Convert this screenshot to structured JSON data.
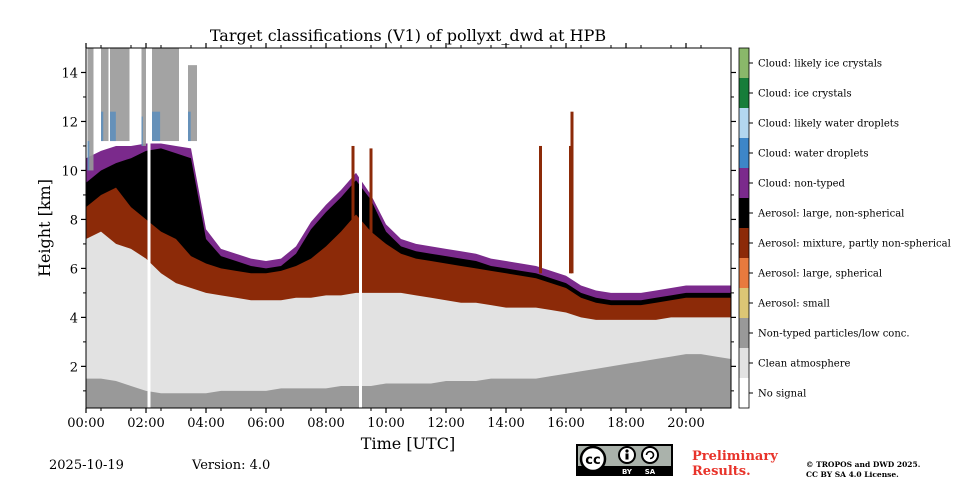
{
  "chart_data": {
    "type": "heatmap",
    "title": "Target classifications (V1) of pollyxt_dwd at HPB",
    "xlabel": "Time [UTC]",
    "ylabel": "Height [km]",
    "xlim": [
      0,
      21.5
    ],
    "ylim": [
      0.3,
      15.0
    ],
    "x_ticks": [
      {
        "value": 0,
        "label": "00:00"
      },
      {
        "value": 2,
        "label": "02:00"
      },
      {
        "value": 4,
        "label": "04:00"
      },
      {
        "value": 6,
        "label": "06:00"
      },
      {
        "value": 8,
        "label": "08:00"
      },
      {
        "value": 10,
        "label": "10:00"
      },
      {
        "value": 12,
        "label": "12:00"
      },
      {
        "value": 14,
        "label": "14:00"
      },
      {
        "value": 16,
        "label": "16:00"
      },
      {
        "value": 18,
        "label": "18:00"
      },
      {
        "value": 20,
        "label": "20:00"
      }
    ],
    "y_ticks": [
      {
        "value": 2,
        "label": "2"
      },
      {
        "value": 4,
        "label": "4"
      },
      {
        "value": 6,
        "label": "6"
      },
      {
        "value": 8,
        "label": "8"
      },
      {
        "value": 10,
        "label": "10"
      },
      {
        "value": 12,
        "label": "12"
      },
      {
        "value": 14,
        "label": "14"
      }
    ],
    "classes": [
      {
        "label": "No signal",
        "color": "#ffffff"
      },
      {
        "label": "Clean atmosphere",
        "color": "#e2e2e2"
      },
      {
        "label": "Non-typed particles/low conc.",
        "color": "#999999"
      },
      {
        "label": "Aerosol: small",
        "color": "#dcc675"
      },
      {
        "label": "Aerosol: large, spherical",
        "color": "#e87a3e"
      },
      {
        "label": "Aerosol: mixture, partly non-spherical",
        "color": "#8c2a08"
      },
      {
        "label": "Aerosol: large, non-spherical",
        "color": "#000000"
      },
      {
        "label": "Cloud: non-typed",
        "color": "#7b2a8c"
      },
      {
        "label": "Cloud: water droplets",
        "color": "#3d86c8"
      },
      {
        "label": "Cloud: likely water droplets",
        "color": "#b3d7f0"
      },
      {
        "label": "Cloud: ice crystals",
        "color": "#177d3a"
      },
      {
        "label": "Cloud: likely ice crystals",
        "color": "#8ab86a"
      }
    ],
    "data_gaps_h": [
      [
        2.05,
        2.15
      ],
      [
        9.1,
        9.2
      ]
    ],
    "layer_tops_km": {
      "time_h": [
        0.0,
        0.5,
        1.0,
        1.5,
        2.0,
        2.5,
        3.0,
        3.5,
        4.0,
        4.5,
        5.0,
        5.5,
        6.0,
        6.5,
        7.0,
        7.5,
        8.0,
        8.5,
        9.0,
        9.5,
        10.0,
        10.5,
        11.0,
        11.5,
        12.0,
        12.5,
        13.0,
        13.5,
        14.0,
        14.5,
        15.0,
        15.5,
        16.0,
        16.5,
        17.0,
        17.5,
        18.0,
        18.5,
        19.0,
        19.5,
        20.0,
        20.5,
        21.0,
        21.5
      ],
      "non_typed_top": [
        1.5,
        1.5,
        1.4,
        1.2,
        1.0,
        0.9,
        0.9,
        0.9,
        0.9,
        1.0,
        1.0,
        1.0,
        1.0,
        1.1,
        1.1,
        1.1,
        1.1,
        1.2,
        1.2,
        1.2,
        1.3,
        1.3,
        1.3,
        1.3,
        1.4,
        1.4,
        1.4,
        1.5,
        1.5,
        1.5,
        1.5,
        1.6,
        1.7,
        1.8,
        1.9,
        2.0,
        2.1,
        2.2,
        2.3,
        2.4,
        2.5,
        2.5,
        2.4,
        2.3
      ],
      "clean_top": [
        7.2,
        7.5,
        7.0,
        6.8,
        6.4,
        5.8,
        5.4,
        5.2,
        5.0,
        4.9,
        4.8,
        4.7,
        4.7,
        4.7,
        4.8,
        4.8,
        4.9,
        4.9,
        5.0,
        5.0,
        5.0,
        5.0,
        4.9,
        4.8,
        4.7,
        4.6,
        4.6,
        4.5,
        4.4,
        4.4,
        4.4,
        4.3,
        4.2,
        4.0,
        3.9,
        3.9,
        3.9,
        3.9,
        3.9,
        4.0,
        4.0,
        4.0,
        4.0,
        4.0
      ],
      "mixture_top": [
        8.5,
        9.0,
        9.3,
        8.5,
        8.0,
        7.5,
        7.2,
        6.5,
        6.2,
        6.0,
        5.9,
        5.8,
        5.8,
        5.9,
        6.1,
        6.4,
        6.9,
        7.5,
        8.2,
        7.5,
        7.0,
        6.6,
        6.4,
        6.3,
        6.2,
        6.1,
        6.0,
        5.9,
        5.8,
        5.7,
        5.6,
        5.4,
        5.2,
        4.8,
        4.6,
        4.5,
        4.5,
        4.5,
        4.6,
        4.7,
        4.8,
        4.8,
        4.8,
        4.8
      ],
      "non_spherical_top": [
        9.5,
        10.0,
        10.3,
        10.5,
        10.8,
        10.9,
        10.7,
        10.5,
        7.2,
        6.5,
        6.3,
        6.1,
        6.0,
        6.1,
        6.6,
        7.6,
        8.3,
        8.9,
        9.6,
        8.8,
        7.5,
        6.9,
        6.7,
        6.6,
        6.5,
        6.4,
        6.3,
        6.1,
        6.0,
        5.9,
        5.8,
        5.6,
        5.4,
        5.0,
        4.8,
        4.7,
        4.7,
        4.7,
        4.8,
        4.9,
        5.0,
        5.0,
        5.0,
        5.0
      ],
      "cloud_top": [
        10.5,
        10.8,
        11.0,
        11.0,
        11.1,
        11.1,
        11.0,
        10.9,
        7.6,
        6.8,
        6.6,
        6.4,
        6.3,
        6.4,
        6.9,
        7.9,
        8.6,
        9.2,
        9.9,
        9.0,
        7.8,
        7.2,
        7.0,
        6.9,
        6.8,
        6.7,
        6.6,
        6.4,
        6.3,
        6.2,
        6.1,
        5.9,
        5.7,
        5.3,
        5.1,
        5.0,
        5.0,
        5.0,
        5.1,
        5.2,
        5.3,
        5.3,
        5.3,
        5.3
      ]
    },
    "cirrus": [
      {
        "t0": 0.05,
        "t1": 0.25,
        "h0": 10.0,
        "h1": 15.0
      },
      {
        "t0": 0.5,
        "t1": 0.75,
        "h0": 11.2,
        "h1": 15.0
      },
      {
        "t0": 0.8,
        "t1": 1.45,
        "h0": 11.2,
        "h1": 15.0
      },
      {
        "t0": 1.85,
        "t1": 2.0,
        "h0": 11.0,
        "h1": 15.0
      },
      {
        "t0": 2.2,
        "t1": 3.1,
        "h0": 11.2,
        "h1": 15.0
      },
      {
        "t0": 3.4,
        "t1": 3.7,
        "h0": 11.2,
        "h1": 14.3
      }
    ],
    "spikes": [
      {
        "t": 8.9,
        "top": 11.0
      },
      {
        "t": 9.5,
        "top": 10.9
      },
      {
        "t": 15.15,
        "top": 11.0
      },
      {
        "t": 16.15,
        "top": 11.0
      },
      {
        "t": 16.2,
        "top": 12.4
      }
    ]
  },
  "footer": {
    "date": "2025-10-19",
    "version": "Version: 4.0",
    "preliminary_line1": "Preliminary",
    "preliminary_line2": "Results.",
    "license_line1": "© TROPOS and DWD 2025.",
    "license_line2": "CC BY SA 4.0 License.",
    "cc_logo_by": "BY",
    "cc_logo_sa": "SA",
    "cc_logo_cc": "cc",
    "colors": {
      "prelim": "#e8332a"
    }
  }
}
